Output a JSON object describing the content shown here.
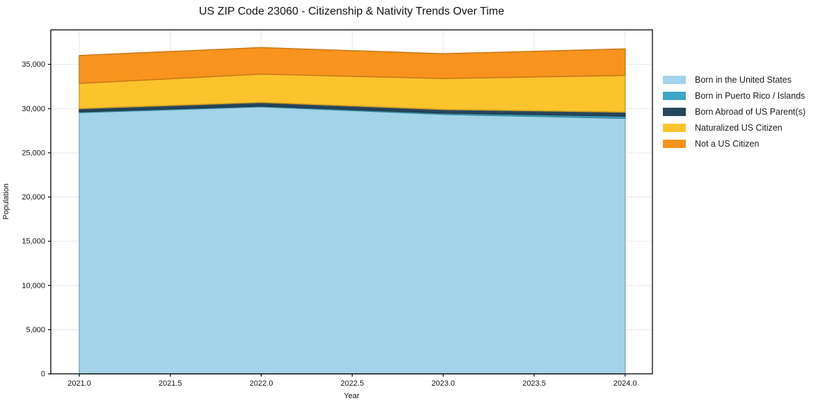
{
  "chart_data": {
    "type": "area",
    "stacked": true,
    "title": "US ZIP Code 23060 - Citizenship & Nativity Trends Over Time",
    "xlabel": "Year",
    "ylabel": "Population",
    "x": [
      2021,
      2022,
      2023,
      2024
    ],
    "xticks": [
      2021.0,
      2021.5,
      2022.0,
      2022.5,
      2023.0,
      2023.5,
      2024.0
    ],
    "yticks": [
      0,
      5000,
      10000,
      15000,
      20000,
      25000,
      30000,
      35000
    ],
    "xlim": [
      2020.843,
      2024.15
    ],
    "ylim": [
      0,
      38900
    ],
    "grid": true,
    "legend_position": "right",
    "background": "#ffffff",
    "gridline_color": "#e6e6e6",
    "series": [
      {
        "name": "Born in the United States",
        "color": "#a3d3e8",
        "values": [
          29550,
          30200,
          29350,
          28900
        ]
      },
      {
        "name": "Born in Puerto Rico / Islands",
        "color": "#3fa6c6",
        "values": [
          100,
          100,
          150,
          250
        ]
      },
      {
        "name": "Born Abroad of US Parent(s)",
        "color": "#27465c",
        "values": [
          350,
          400,
          400,
          450
        ]
      },
      {
        "name": "Naturalized US Citizen",
        "color": "#fcc32d",
        "values": [
          2850,
          3200,
          3500,
          4150
        ]
      },
      {
        "name": "Not a US Citizen",
        "color": "#f8941e",
        "values": [
          3150,
          3000,
          2800,
          3000
        ]
      }
    ]
  }
}
